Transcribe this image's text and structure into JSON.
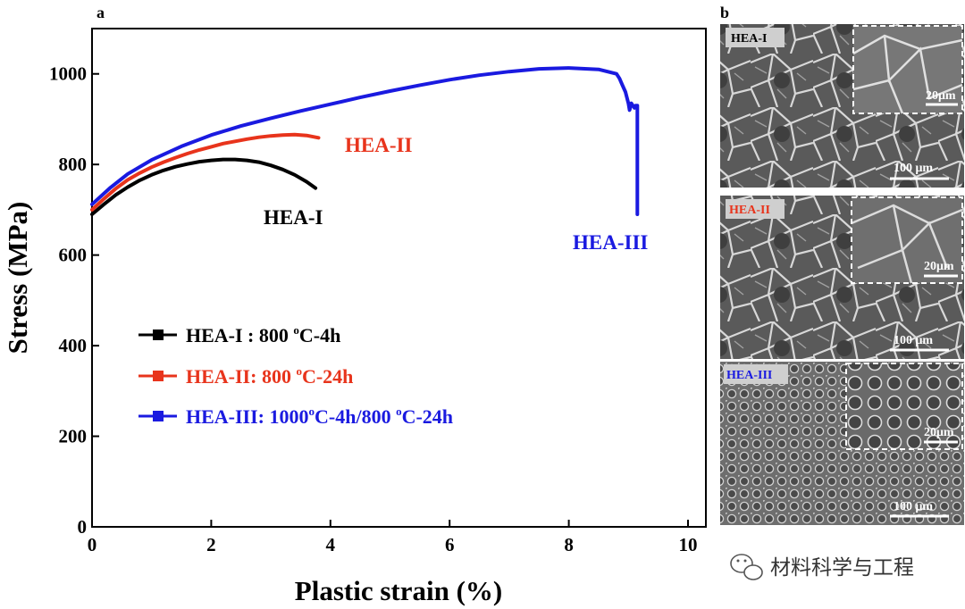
{
  "chart_data": {
    "type": "line",
    "panel_letter": "a",
    "xlabel": "Plastic strain (%)",
    "ylabel": "Stress (MPa)",
    "xlim": [
      0,
      10.3
    ],
    "ylim": [
      0,
      1100
    ],
    "xticks": [
      0,
      2,
      4,
      6,
      8,
      10
    ],
    "yticks": [
      0,
      200,
      400,
      600,
      800,
      1000
    ],
    "grid": false,
    "legend_position": "center-left",
    "series": [
      {
        "name": "HEA-I : 800 oC-4h",
        "legend_label": "HEA-I : 800 ",
        "legend_sup": "o",
        "legend_suffix": "C-4h",
        "curve_label": "HEA-I",
        "color": "#000000",
        "x": [
          0,
          0.2,
          0.4,
          0.6,
          0.8,
          1.0,
          1.2,
          1.4,
          1.6,
          1.8,
          2.0,
          2.2,
          2.4,
          2.6,
          2.8,
          3.0,
          3.2,
          3.4,
          3.6,
          3.75
        ],
        "y": [
          690,
          712,
          733,
          750,
          765,
          777,
          787,
          795,
          801,
          806,
          809,
          811,
          811,
          809,
          805,
          798,
          789,
          777,
          762,
          748
        ]
      },
      {
        "name": "HEA-II: 800 oC-24h",
        "legend_label": "HEA-II: 800 ",
        "legend_sup": "o",
        "legend_suffix": "C-24h",
        "curve_label": "HEA-II",
        "color": "#e8341c",
        "x": [
          0,
          0.2,
          0.4,
          0.6,
          0.8,
          1.0,
          1.2,
          1.4,
          1.6,
          1.8,
          2.0,
          2.2,
          2.4,
          2.6,
          2.8,
          3.0,
          3.2,
          3.4,
          3.6,
          3.8
        ],
        "y": [
          700,
          724,
          747,
          766,
          781,
          794,
          805,
          815,
          824,
          832,
          839,
          846,
          851,
          856,
          860,
          863,
          865,
          866,
          864,
          859
        ]
      },
      {
        "name": "HEA-III: 1000oC-4h/800 oC-24h",
        "legend_label": "HEA-III: 1000",
        "legend_sup": "o",
        "legend_suffix": "C-4h/800 ",
        "legend_sup2": "o",
        "legend_suffix2": "C-24h",
        "curve_label": "HEA-III",
        "color": "#1a1ae0",
        "x": [
          0,
          0.3,
          0.6,
          1.0,
          1.5,
          2.0,
          2.5,
          3.0,
          3.5,
          4.0,
          4.5,
          5.0,
          5.5,
          6.0,
          6.5,
          7.0,
          7.5,
          8.0,
          8.5,
          8.8,
          8.85,
          8.9,
          8.95,
          9.0,
          9.02,
          9.05,
          9.1,
          9.12,
          9.15,
          9.15
        ],
        "y": [
          712,
          748,
          779,
          810,
          840,
          865,
          885,
          902,
          918,
          933,
          948,
          962,
          975,
          987,
          997,
          1005,
          1011,
          1013,
          1010,
          1000,
          990,
          975,
          960,
          935,
          920,
          935,
          925,
          930,
          930,
          690
        ]
      }
    ]
  },
  "micrographs": {
    "panel_letter": "b",
    "panels": [
      {
        "tag": "HEA-I",
        "tag_color": "#000000",
        "inset_scale": "20μm",
        "main_scale": "100 μm",
        "texture": "coarse"
      },
      {
        "tag": "HEA-II",
        "tag_color": "#e8341c",
        "inset_scale": "20μm",
        "main_scale": "100 μm",
        "texture": "coarse"
      },
      {
        "tag": "HEA-III",
        "tag_color": "#1a1ae0",
        "inset_scale": "20μm",
        "main_scale": "100 μm",
        "texture": "dimple"
      }
    ]
  },
  "watermark": {
    "text": "材料科学与工程",
    "icon": "wechat-icon"
  }
}
